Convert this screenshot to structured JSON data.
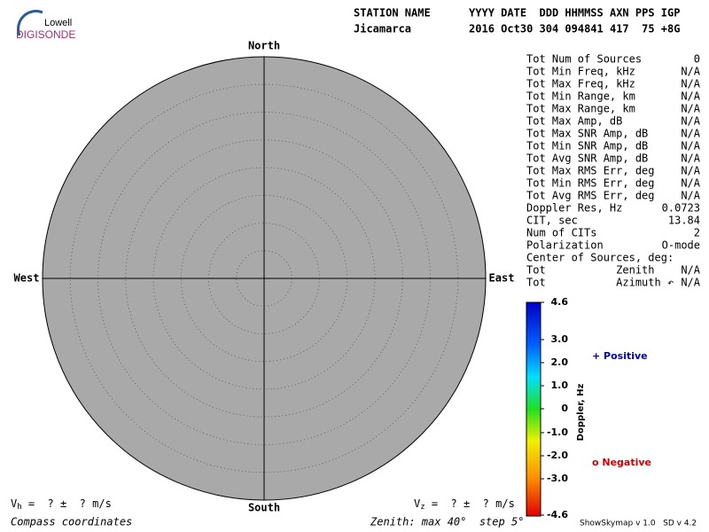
{
  "logo": {
    "top": "Lowell",
    "bottom": "DIGISONDE"
  },
  "header": {
    "line1": "STATION NAME      YYYY DATE  DDD HHMMSS AXN PPS IGP",
    "line2": "Jicamarca         2016 Oct30 304 094841 417  75 +8G"
  },
  "compass": {
    "north": "North",
    "south": "South",
    "west": "West",
    "east": "East"
  },
  "stats": [
    [
      "Tot Num of Sources",
      "0"
    ],
    [
      "Tot Min Freq, kHz",
      "N/A"
    ],
    [
      "Tot Max Freq, kHz",
      "N/A"
    ],
    [
      "Tot Min Range, km",
      "N/A"
    ],
    [
      "Tot Max Range, km",
      "N/A"
    ],
    [
      "Tot Max Amp, dB",
      "N/A"
    ],
    [
      "Tot Max SNR Amp, dB",
      "N/A"
    ],
    [
      "Tot Min SNR Amp, dB",
      "N/A"
    ],
    [
      "Tot Avg SNR Amp, dB",
      "N/A"
    ],
    [
      "Tot Max RMS Err, deg",
      "N/A"
    ],
    [
      "Tot Min RMS Err, deg",
      "N/A"
    ],
    [
      "Tot Avg RMS Err, deg",
      "N/A"
    ],
    [
      "Doppler Res, Hz",
      "0.0723"
    ],
    [
      "CIT, sec",
      "13.84"
    ],
    [
      "Num of CITs",
      "2"
    ],
    [
      "Polarization",
      "O-mode"
    ],
    [
      "Center of Sources, deg:"
    ],
    [
      "Tot           Zenith",
      "N/A"
    ],
    [
      "Tot           Azimuth ↶",
      "N/A"
    ]
  ],
  "colorbar": {
    "title": "Doppler, Hz",
    "ticks": [
      "4.6",
      "3.0",
      "2.0",
      "1.0",
      "0",
      "-1.0",
      "-2.0",
      "-3.0",
      "-4.6"
    ]
  },
  "legend": {
    "positive": "+ Positive",
    "negative": "o Negative"
  },
  "footer": {
    "vh": {
      "symbol": "V",
      "subscript": "h",
      "text": " =  ? ±  ? m/s"
    },
    "vz": {
      "symbol": "V",
      "subscript": "z",
      "text": " =  ? ±  ? m/s"
    },
    "coordinates": "Compass coordinates",
    "zenith": "Zenith: max 40°  step 5°",
    "version": "ShowSkymap v 1.0   SD v 4.2"
  }
}
